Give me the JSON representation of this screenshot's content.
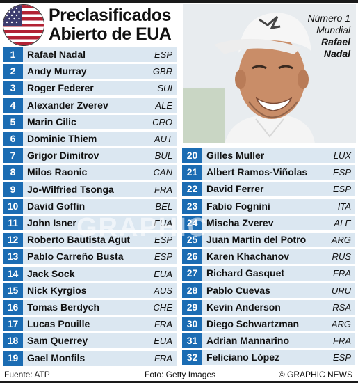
{
  "title": {
    "line1": "Preclasificados",
    "line2": "Abierto de EUA"
  },
  "photo_caption": {
    "line1": "Número 1",
    "line2": "Mundial",
    "name1": "Rafael",
    "name2": "Nadal"
  },
  "colors": {
    "accent": "#1b6cb3",
    "row_bg": "#dbe7f1",
    "flag_red": "#b22234",
    "flag_blue": "#3c3b6e"
  },
  "left_list": [
    {
      "num": "1",
      "name": "Rafael Nadal",
      "ctry": "ESP"
    },
    {
      "num": "2",
      "name": "Andy Murray",
      "ctry": "GBR"
    },
    {
      "num": "3",
      "name": "Roger Federer",
      "ctry": "SUI"
    },
    {
      "num": "4",
      "name": "Alexander Zverev",
      "ctry": "ALE"
    },
    {
      "num": "5",
      "name": "Marin Cilic",
      "ctry": "CRO"
    },
    {
      "num": "6",
      "name": "Dominic Thiem",
      "ctry": "AUT"
    },
    {
      "num": "7",
      "name": "Grigor Dimitrov",
      "ctry": "BUL"
    },
    {
      "num": "8",
      "name": "Milos Raonic",
      "ctry": "CAN"
    },
    {
      "num": "9",
      "name": "Jo-Wilfried Tsonga",
      "ctry": "FRA"
    },
    {
      "num": "10",
      "name": "David Goffin",
      "ctry": "BEL"
    },
    {
      "num": "11",
      "name": "John Isner",
      "ctry": "EUA"
    },
    {
      "num": "12",
      "name": "Roberto Bautista Agut",
      "ctry": "ESP"
    },
    {
      "num": "13",
      "name": "Pablo Carreño Busta",
      "ctry": "ESP"
    },
    {
      "num": "14",
      "name": "Jack Sock",
      "ctry": "EUA"
    },
    {
      "num": "15",
      "name": "Nick Kyrgios",
      "ctry": "AUS"
    },
    {
      "num": "16",
      "name": "Tomas Berdych",
      "ctry": "CHE"
    },
    {
      "num": "17",
      "name": "Lucas Pouille",
      "ctry": "FRA"
    },
    {
      "num": "18",
      "name": "Sam Querrey",
      "ctry": "EUA"
    },
    {
      "num": "19",
      "name": "Gael Monfils",
      "ctry": "FRA"
    }
  ],
  "right_list": [
    {
      "num": "20",
      "name": "Gilles Muller",
      "ctry": "LUX"
    },
    {
      "num": "21",
      "name": "Albert Ramos-Viñolas",
      "ctry": "ESP"
    },
    {
      "num": "22",
      "name": "David Ferrer",
      "ctry": "ESP"
    },
    {
      "num": "23",
      "name": "Fabio Fognini",
      "ctry": "ITA"
    },
    {
      "num": "24",
      "name": "Mischa Zverev",
      "ctry": "ALE"
    },
    {
      "num": "25",
      "name": "Juan Martin del Potro",
      "ctry": "ARG"
    },
    {
      "num": "26",
      "name": "Karen Khachanov",
      "ctry": "RUS"
    },
    {
      "num": "27",
      "name": "Richard Gasquet",
      "ctry": "FRA"
    },
    {
      "num": "28",
      "name": "Pablo Cuevas",
      "ctry": "URU"
    },
    {
      "num": "29",
      "name": "Kevin Anderson",
      "ctry": "RSA"
    },
    {
      "num": "30",
      "name": "Diego Schwartzman",
      "ctry": "ARG"
    },
    {
      "num": "31",
      "name": "Adrian Mannarino",
      "ctry": "FRA"
    },
    {
      "num": "32",
      "name": "Feliciano López",
      "ctry": "ESP"
    }
  ],
  "footer": {
    "source": "Fuente: ATP",
    "photo": "Foto: Getty Images",
    "credit": "© GRAPHIC NEWS"
  }
}
